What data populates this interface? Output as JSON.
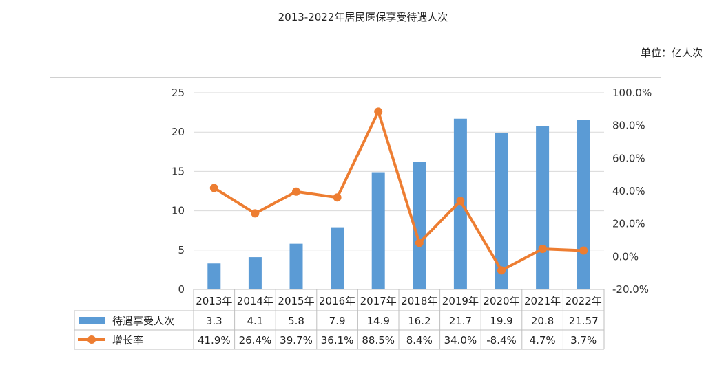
{
  "title": "2013-2022年居民医保享受待遇人次",
  "unit_label": "单位：亿人次",
  "colors": {
    "bar": "#5b9bd5",
    "line": "#ed7d31",
    "grid": "#d9d9d9",
    "table_border": "#bfbfbf"
  },
  "chart_data": {
    "type": "bar",
    "categories": [
      "2013年",
      "2014年",
      "2015年",
      "2016年",
      "2017年",
      "2018年",
      "2019年",
      "2020年",
      "2021年",
      "2022年"
    ],
    "series": [
      {
        "name": "待遇享受人次",
        "type": "bar",
        "axis": "left",
        "values": [
          3.3,
          4.1,
          5.8,
          7.9,
          14.9,
          16.2,
          21.7,
          19.9,
          20.8,
          21.57
        ],
        "labels": [
          "3.3",
          "4.1",
          "5.8",
          "7.9",
          "14.9",
          "16.2",
          "21.7",
          "19.9",
          "20.8",
          "21.57"
        ]
      },
      {
        "name": "增长率",
        "type": "line",
        "axis": "right",
        "values": [
          41.9,
          26.4,
          39.7,
          36.1,
          88.5,
          8.4,
          34.0,
          -8.4,
          4.7,
          3.7
        ],
        "labels": [
          "41.9%",
          "26.4%",
          "39.7%",
          "36.1%",
          "88.5%",
          "8.4%",
          "34.0%",
          "-8.4%",
          "4.7%",
          "3.7%"
        ]
      }
    ],
    "y_left": {
      "range": [
        0,
        25
      ],
      "ticks": [
        "0",
        "5",
        "10",
        "15",
        "20",
        "25"
      ]
    },
    "y_right": {
      "range": [
        -20,
        100
      ],
      "ticks": [
        "-20.0%",
        "0.0%",
        "20.0%",
        "40.0%",
        "60.0%",
        "80.0%",
        "100.0%"
      ]
    },
    "grid": true,
    "legend": "data-table"
  }
}
